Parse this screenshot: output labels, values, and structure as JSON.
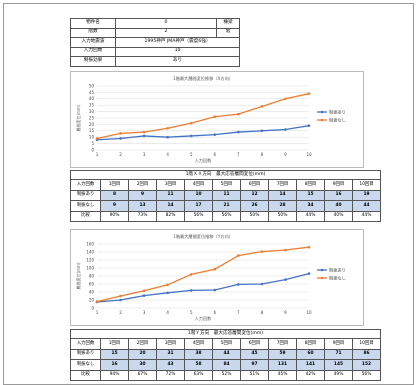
{
  "info": {
    "rows": [
      {
        "label": "物件名",
        "value": "0",
        "extra": "棟梁"
      },
      {
        "label": "階数",
        "value": "2",
        "extra": "階"
      },
      {
        "label": "入力地震波",
        "value": "1995神戸 JMA神戸（震度6強）",
        "extra": ""
      },
      {
        "label": "入力回数",
        "value": "10",
        "extra": ""
      },
      {
        "label": "制振効果",
        "value": "あり",
        "extra": ""
      }
    ]
  },
  "chart_data": [
    {
      "type": "line",
      "title": "1階最大層間変位推移（X方向）",
      "xlabel": "入力回数",
      "ylabel": "層間変位(mm)",
      "x": [
        1,
        2,
        3,
        4,
        5,
        6,
        7,
        8,
        9,
        10
      ],
      "ylim": [
        0,
        50
      ],
      "yticks": [
        0,
        5,
        10,
        15,
        20,
        25,
        30,
        35,
        40,
        45,
        50
      ],
      "series": [
        {
          "name": "制振あり",
          "color": "#4472c4",
          "values": [
            8,
            9,
            11,
            10,
            11,
            12,
            14,
            15,
            16,
            19
          ]
        },
        {
          "name": "制振なし",
          "color": "#ed7d31",
          "values": [
            9,
            13,
            14,
            17,
            21,
            26,
            28,
            34,
            40,
            44
          ]
        }
      ],
      "legend": "right"
    },
    {
      "type": "line",
      "title": "1階最大層間変位推移（Y方向）",
      "xlabel": "入力回数",
      "ylabel": "層間変位(mm)",
      "x": [
        1,
        2,
        3,
        4,
        5,
        6,
        7,
        8,
        9,
        10
      ],
      "ylim": [
        0,
        160
      ],
      "yticks": [
        0,
        20,
        40,
        60,
        80,
        100,
        120,
        140,
        160
      ],
      "series": [
        {
          "name": "制振あり",
          "color": "#4472c4",
          "values": [
            15,
            20,
            31,
            38,
            44,
            45,
            59,
            60,
            71,
            86
          ]
        },
        {
          "name": "制振なし",
          "color": "#ed7d31",
          "values": [
            16,
            30,
            43,
            58,
            84,
            97,
            131,
            141,
            145,
            152
          ]
        }
      ],
      "legend": "right"
    }
  ],
  "table_x": {
    "title": "1階ＸＸ方向　最大応答層間変位(mm)",
    "header": [
      "入力回数",
      "1回目",
      "2回目",
      "3回目",
      "4回目",
      "5回目",
      "6回目",
      "7回目",
      "8回目",
      "9回目",
      "10回目"
    ],
    "row_a": {
      "label": "制振あり",
      "values": [
        "8",
        "9",
        "11",
        "10",
        "11",
        "12",
        "14",
        "15",
        "16",
        "19"
      ]
    },
    "row_b": {
      "label": "制振なし",
      "values": [
        "9",
        "13",
        "14",
        "17",
        "21",
        "26",
        "28",
        "34",
        "40",
        "44"
      ]
    },
    "row_p": {
      "label": "比較",
      "values": [
        "90%",
        "73%",
        "82%",
        "56%",
        "56%",
        "50%",
        "50%",
        "44%",
        "40%",
        "44%"
      ]
    }
  },
  "table_y": {
    "title": "1階Ｙ方向　最大応答層間変位(mm)",
    "header": [
      "入力回数",
      "1回目",
      "2回目",
      "3回目",
      "4回目",
      "5回目",
      "6回目",
      "7回目",
      "8回目",
      "9回目",
      "10回目"
    ],
    "row_a": {
      "label": "制振あり",
      "values": [
        "15",
        "20",
        "31",
        "38",
        "44",
        "45",
        "59",
        "60",
        "71",
        "86"
      ]
    },
    "row_b": {
      "label": "制振なし",
      "values": [
        "16",
        "30",
        "43",
        "58",
        "84",
        "97",
        "131",
        "141",
        "145",
        "152"
      ]
    },
    "row_p": {
      "label": "比較",
      "values": [
        "94%",
        "67%",
        "72%",
        "63%",
        "52%",
        "51%",
        "45%",
        "42%",
        "49%",
        "56%"
      ]
    }
  }
}
